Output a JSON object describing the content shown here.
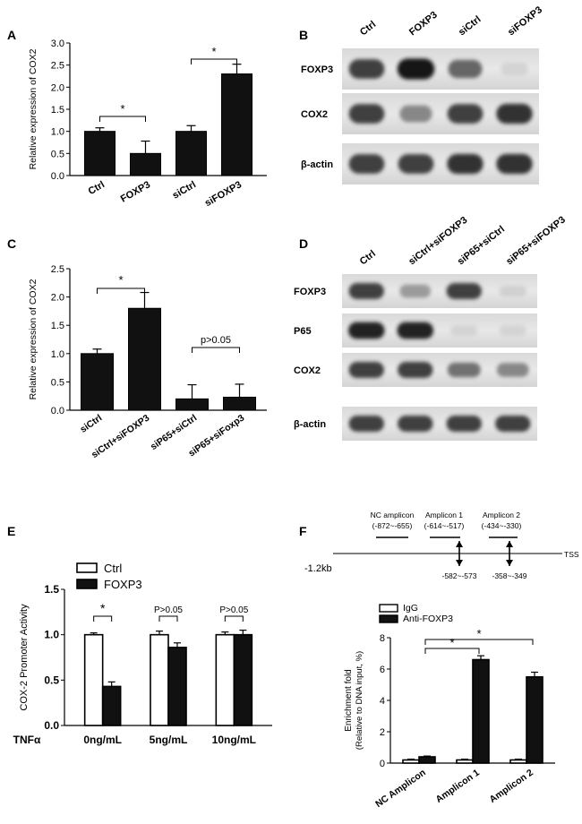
{
  "panels": {
    "A": {
      "letter": "A",
      "chart_data": {
        "type": "bar",
        "categories": [
          "Ctrl",
          "FOXP3",
          "siCtrl",
          "siFOXP3"
        ],
        "values": [
          1.0,
          0.5,
          1.0,
          2.3
        ],
        "errors": [
          0.08,
          0.28,
          0.13,
          0.22
        ],
        "ylabel": "Relative expression of COX2",
        "ylim": [
          0,
          3.0
        ],
        "yticks": [
          "0.0",
          "0.5",
          "1.0",
          "1.5",
          "2.0",
          "2.5",
          "3.0"
        ],
        "significance": [
          {
            "from": 0,
            "to": 1,
            "label": "*"
          },
          {
            "from": 2,
            "to": 3,
            "label": "*"
          }
        ]
      }
    },
    "B": {
      "letter": "B",
      "lanes": [
        "Ctrl",
        "FOXP3",
        "siCtrl",
        "siFOXP3"
      ],
      "rows": [
        {
          "label": "FOXP3",
          "intensity": [
            0.85,
            1.0,
            0.7,
            0.05
          ]
        },
        {
          "label": "COX2",
          "intensity": [
            0.85,
            0.55,
            0.85,
            0.9
          ]
        },
        {
          "label": "β-actin",
          "intensity": [
            0.85,
            0.85,
            0.9,
            0.9
          ]
        }
      ]
    },
    "C": {
      "letter": "C",
      "chart_data": {
        "type": "bar",
        "categories": [
          "siCtrl",
          "siCtrl+siFOXP3",
          "siP65+siCtrl",
          "siP65+siFoxp3"
        ],
        "values": [
          1.0,
          1.8,
          0.2,
          0.23
        ],
        "errors": [
          0.08,
          0.28,
          0.25,
          0.23
        ],
        "ylabel": "Relative expression of COX2",
        "ylim": [
          0,
          2.5
        ],
        "yticks": [
          "0.0",
          "0.5",
          "1.0",
          "1.5",
          "2.0",
          "2.5"
        ],
        "significance": [
          {
            "from": 0,
            "to": 1,
            "label": "*"
          },
          {
            "from": 2,
            "to": 3,
            "label": "p>0.05"
          }
        ]
      }
    },
    "D": {
      "letter": "D",
      "lanes": [
        "Ctrl",
        "siCtrl+siFOXP3",
        "siP65+siCtrl",
        "siP65+siFOXP3"
      ],
      "rows": [
        {
          "label": "FOXP3",
          "intensity": [
            0.85,
            0.45,
            0.85,
            0.08
          ]
        },
        {
          "label": "P65",
          "intensity": [
            0.95,
            0.95,
            0.05,
            0.05
          ]
        },
        {
          "label": "COX2",
          "intensity": [
            0.85,
            0.85,
            0.65,
            0.55
          ]
        },
        {
          "label": "β-actin",
          "intensity": [
            0.85,
            0.85,
            0.85,
            0.85
          ]
        }
      ]
    },
    "E": {
      "letter": "E",
      "chart_data": {
        "type": "bar",
        "categories": [
          "0ng/mL",
          "5ng/mL",
          "10ng/mL"
        ],
        "series": [
          {
            "name": "Ctrl",
            "values": [
              1.0,
              1.0,
              1.0
            ],
            "errors": [
              0.02,
              0.04,
              0.03
            ]
          },
          {
            "name": "FOXP3",
            "values": [
              0.43,
              0.86,
              1.0
            ],
            "errors": [
              0.05,
              0.05,
              0.05
            ]
          }
        ],
        "ylabel": "COX-2 Promoter Activity",
        "xlabel": "TNFα",
        "ylim": [
          0,
          1.5
        ],
        "yticks": [
          "0.0",
          "0.5",
          "1.0",
          "1.5"
        ],
        "significance": [
          "*",
          "P>0.05",
          "P>0.05"
        ]
      }
    },
    "F": {
      "letter": "F",
      "map": {
        "start_label": "-1.2kb",
        "end_label": "TSS",
        "amplicons": [
          {
            "name": "NC amplicon",
            "range": "(-872~-655)"
          },
          {
            "name": "Amplicon 1",
            "range": "(-614~-517)"
          },
          {
            "name": "Amplicon  2",
            "range": "(-434~-330)"
          }
        ],
        "sites": [
          "-582~-573",
          "-358~-349"
        ]
      },
      "chart_data": {
        "type": "bar",
        "categories": [
          "NC Amplicon",
          "Amplicon 1",
          "Amplicon 2"
        ],
        "series": [
          {
            "name": "IgG",
            "values": [
              0.2,
              0.2,
              0.2
            ],
            "errors": [
              0.05,
              0.05,
              0.05
            ]
          },
          {
            "name": "Anti-FOXP3",
            "values": [
              0.4,
              6.6,
              5.5
            ],
            "errors": [
              0.05,
              0.25,
              0.3
            ]
          }
        ],
        "ylabel": "Enrichment fold",
        "ylabel2": "(Relative to DNA input, %)",
        "ylim": [
          0,
          8
        ],
        "yticks": [
          "0",
          "2",
          "4",
          "6",
          "8"
        ],
        "significance": [
          {
            "from": 0,
            "to": 1,
            "label": "*"
          },
          {
            "from": 0,
            "to": 2,
            "label": "*"
          }
        ]
      }
    }
  }
}
